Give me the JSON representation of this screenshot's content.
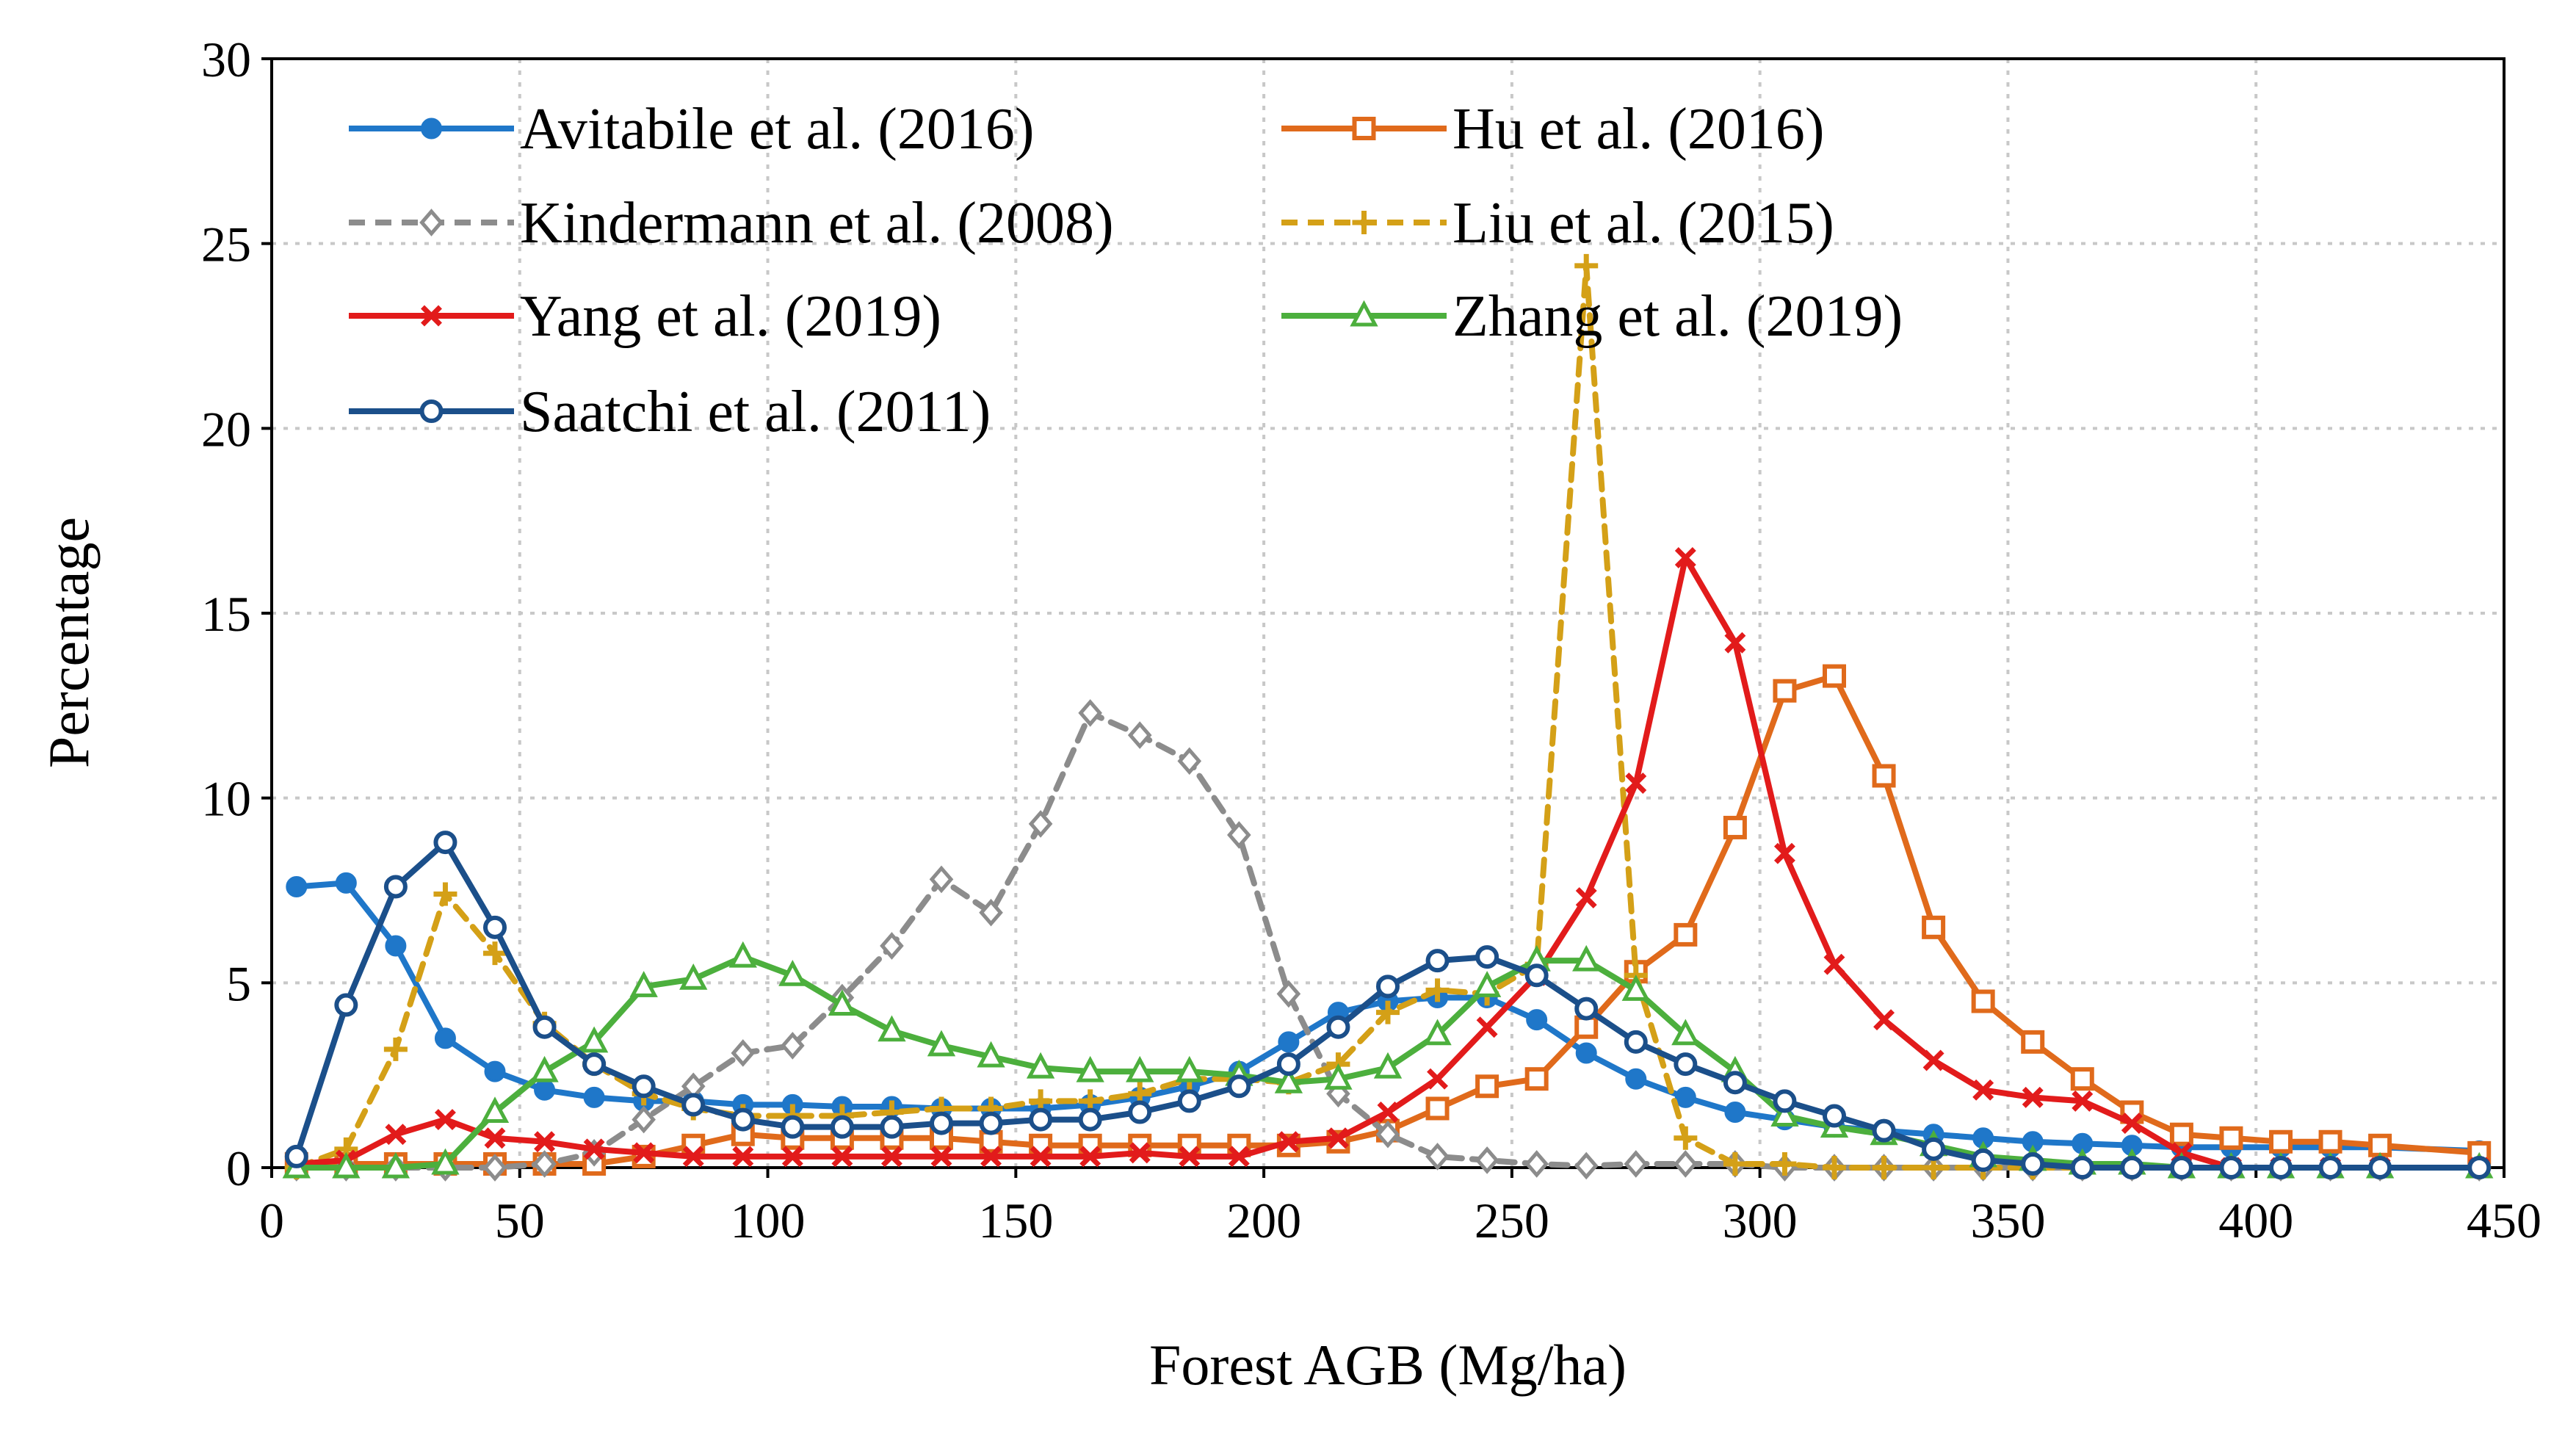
{
  "chart_data": {
    "type": "line",
    "title": "",
    "xlabel": "Forest AGB  (Mg/ha)",
    "ylabel": "Percentage",
    "xlim": [
      0,
      450
    ],
    "ylim": [
      0,
      30
    ],
    "xticks": [
      0,
      50,
      100,
      150,
      200,
      250,
      300,
      350,
      400,
      450
    ],
    "yticks": [
      0,
      5,
      10,
      15,
      20,
      25,
      30
    ],
    "grid": true,
    "legend_position": "top-left",
    "x": [
      5,
      15,
      25,
      35,
      45,
      55,
      65,
      75,
      85,
      95,
      105,
      115,
      125,
      135,
      145,
      155,
      165,
      175,
      185,
      195,
      205,
      215,
      225,
      235,
      245,
      255,
      265,
      275,
      285,
      295,
      305,
      315,
      325,
      335,
      345,
      355,
      365,
      375,
      385,
      395,
      405,
      415,
      425,
      445
    ],
    "series": [
      {
        "name": "Avitabile et al. (2016)",
        "color": "#1f77c9",
        "dash": "solid",
        "marker": "circle-filled",
        "values": [
          7.6,
          7.7,
          6.0,
          3.5,
          2.6,
          2.1,
          1.9,
          1.8,
          1.8,
          1.7,
          1.7,
          1.65,
          1.65,
          1.6,
          1.6,
          1.6,
          1.7,
          1.9,
          2.2,
          2.6,
          3.4,
          4.2,
          4.5,
          4.6,
          4.6,
          4.0,
          3.1,
          2.4,
          1.9,
          1.5,
          1.3,
          1.1,
          1.0,
          0.9,
          0.8,
          0.7,
          0.65,
          0.6,
          0.55,
          0.55,
          0.55,
          0.55,
          0.55,
          0.45
        ]
      },
      {
        "name": "Hu et al. (2016)",
        "color": "#e06a1b",
        "dash": "solid",
        "marker": "square",
        "values": [
          0.1,
          0.1,
          0.1,
          0.1,
          0.1,
          0.1,
          0.1,
          0.3,
          0.6,
          0.9,
          0.8,
          0.8,
          0.8,
          0.8,
          0.7,
          0.6,
          0.6,
          0.6,
          0.6,
          0.6,
          0.6,
          0.7,
          1.0,
          1.6,
          2.2,
          2.4,
          3.8,
          5.3,
          6.3,
          9.2,
          12.9,
          13.3,
          10.6,
          6.5,
          4.5,
          3.4,
          2.4,
          1.5,
          0.9,
          0.8,
          0.7,
          0.7,
          0.6,
          0.4
        ]
      },
      {
        "name": "Kindermann et al. (2008)",
        "color": "#8c8c8c",
        "dash": "dashed",
        "marker": "diamond",
        "values": [
          0.0,
          0.0,
          0.0,
          0.0,
          0.0,
          0.1,
          0.4,
          1.3,
          2.2,
          3.1,
          3.3,
          4.6,
          6.0,
          7.8,
          6.9,
          9.3,
          12.3,
          11.7,
          11.0,
          9.0,
          4.7,
          2.0,
          0.9,
          0.3,
          0.2,
          0.1,
          0.05,
          0.1,
          0.1,
          0.1,
          0.0,
          0.0,
          0.0,
          0.0,
          0.0,
          0.0,
          0.0,
          0.0,
          0.0,
          0.0,
          0.0,
          0.0,
          0.0,
          0.0
        ]
      },
      {
        "name": "Liu et al. (2015)",
        "color": "#d4a017",
        "dash": "dashed",
        "marker": "plus",
        "values": [
          0.0,
          0.5,
          3.2,
          7.4,
          5.8,
          3.9,
          2.8,
          2.0,
          1.6,
          1.4,
          1.4,
          1.4,
          1.5,
          1.6,
          1.6,
          1.8,
          1.8,
          2.0,
          2.4,
          2.4,
          2.3,
          2.8,
          4.2,
          4.8,
          4.7,
          5.5,
          24.4,
          5.2,
          0.8,
          0.1,
          0.1,
          0.0,
          0.0,
          0.0,
          0.0,
          0.0,
          0.0,
          0.0,
          0.0,
          0.0,
          0.0,
          0.0,
          0.0,
          0.0
        ]
      },
      {
        "name": "Yang et al. (2019)",
        "color": "#e21b1b",
        "dash": "solid",
        "marker": "cross",
        "values": [
          0.1,
          0.2,
          0.9,
          1.3,
          0.8,
          0.7,
          0.5,
          0.4,
          0.3,
          0.3,
          0.3,
          0.3,
          0.3,
          0.3,
          0.3,
          0.3,
          0.3,
          0.4,
          0.3,
          0.3,
          0.7,
          0.8,
          1.5,
          2.4,
          3.8,
          5.2,
          7.3,
          10.4,
          16.5,
          14.2,
          8.5,
          5.5,
          4.0,
          2.9,
          2.1,
          1.9,
          1.8,
          1.2,
          0.4,
          0.0,
          0.0,
          0.0,
          0.0,
          0.0
        ]
      },
      {
        "name": "Zhang et al. (2019)",
        "color": "#4caf3d",
        "dash": "solid",
        "marker": "triangle",
        "values": [
          0.0,
          0.0,
          0.0,
          0.1,
          1.5,
          2.6,
          3.4,
          4.9,
          5.1,
          5.7,
          5.2,
          4.4,
          3.7,
          3.3,
          3.0,
          2.7,
          2.6,
          2.6,
          2.6,
          2.5,
          2.3,
          2.4,
          2.7,
          3.6,
          4.9,
          5.6,
          5.6,
          4.8,
          3.6,
          2.6,
          1.4,
          1.1,
          0.9,
          0.6,
          0.3,
          0.2,
          0.1,
          0.1,
          0.0,
          0.0,
          0.0,
          0.0,
          0.0,
          0.0
        ]
      },
      {
        "name": "Saatchi et al. (2011)",
        "color": "#1b4f8a",
        "dash": "solid",
        "marker": "circle-open",
        "values": [
          0.3,
          4.4,
          7.6,
          8.8,
          6.5,
          3.8,
          2.8,
          2.2,
          1.7,
          1.3,
          1.1,
          1.1,
          1.1,
          1.2,
          1.2,
          1.3,
          1.3,
          1.5,
          1.8,
          2.2,
          2.8,
          3.8,
          4.9,
          5.6,
          5.7,
          5.2,
          4.3,
          3.4,
          2.8,
          2.3,
          1.8,
          1.4,
          1.0,
          0.5,
          0.2,
          0.1,
          0.0,
          0.0,
          0.0,
          0.0,
          0.0,
          0.0,
          0.0,
          0.0
        ]
      }
    ]
  }
}
